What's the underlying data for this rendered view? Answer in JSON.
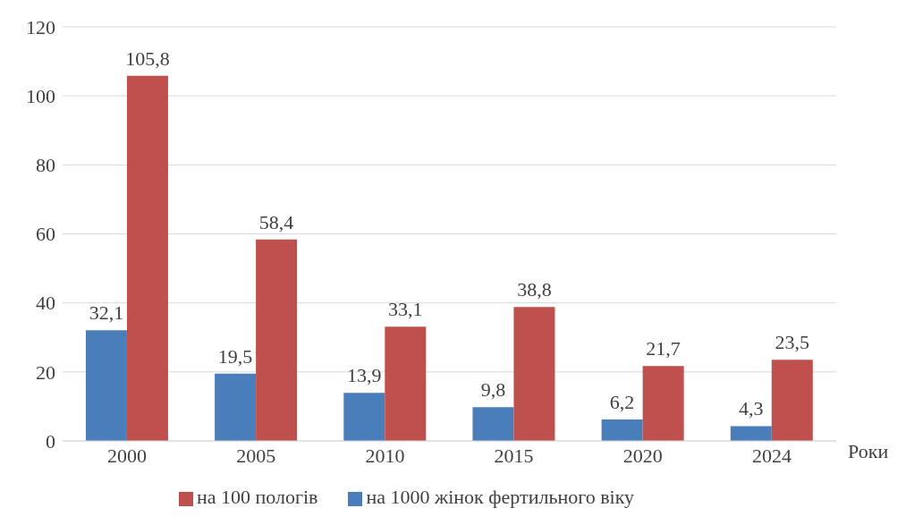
{
  "chart_data": {
    "type": "bar",
    "xlabel": "Роки",
    "categories": [
      "2000",
      "2005",
      "2010",
      "2015",
      "2020",
      "2024"
    ],
    "series": [
      {
        "name": "на 1000 жінок фертильного віку",
        "color": "#4a7ebb",
        "values": [
          32.1,
          19.5,
          13.9,
          9.8,
          6.2,
          4.3
        ],
        "value_labels": [
          "32,1",
          "19,5",
          "13,9",
          "9,8",
          "6,2",
          "4,3"
        ]
      },
      {
        "name": "на 100 пологів",
        "color": "#c0504d",
        "values": [
          105.8,
          58.4,
          33.1,
          38.8,
          21.7,
          23.5
        ],
        "value_labels": [
          "105,8",
          "58,4",
          "33,1",
          "38,8",
          "21,7",
          "23,5"
        ]
      }
    ],
    "ylim": [
      0,
      120
    ],
    "yticks": [
      0,
      20,
      40,
      60,
      80,
      100,
      120
    ],
    "grid": "y",
    "legend": "bottom"
  }
}
